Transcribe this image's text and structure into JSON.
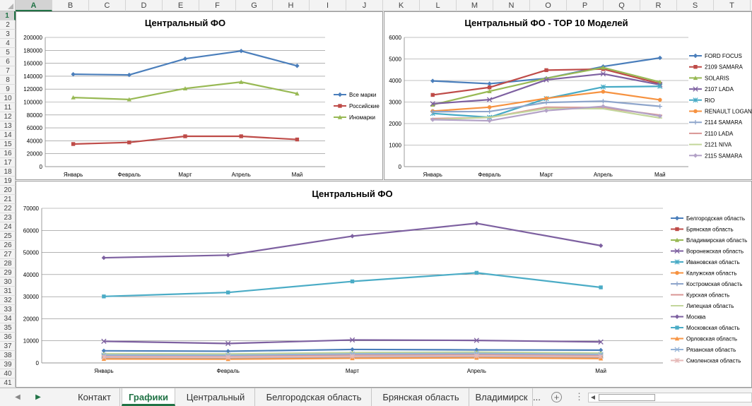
{
  "columns": [
    "A",
    "B",
    "C",
    "D",
    "E",
    "F",
    "G",
    "H",
    "I",
    "J",
    "K",
    "L",
    "M",
    "N",
    "O",
    "P",
    "Q",
    "R",
    "S",
    "T"
  ],
  "selected_column": "A",
  "rows": [
    "1",
    "2",
    "3",
    "4",
    "5",
    "6",
    "7",
    "8",
    "9",
    "10",
    "11",
    "12",
    "13",
    "14",
    "15",
    "16",
    "17",
    "18",
    "19",
    "20",
    "21",
    "22",
    "23",
    "24",
    "25",
    "26",
    "27",
    "28",
    "29",
    "30",
    "31",
    "32",
    "33",
    "34",
    "35",
    "36",
    "37",
    "38",
    "39",
    "40",
    "41"
  ],
  "selected_row": "1",
  "tabs": {
    "items": [
      {
        "label": "Контакт",
        "active": false
      },
      {
        "label": "Графики",
        "active": true
      },
      {
        "label": "Центральный",
        "active": false
      },
      {
        "label": "Белгородская область",
        "active": false
      },
      {
        "label": "Брянская область",
        "active": false
      },
      {
        "label": "Владимирск",
        "active": false
      }
    ],
    "more": "...",
    "add_icon": "plus-circle-icon",
    "options_icon": "vertical-ellipsis-icon"
  },
  "chart_data": [
    {
      "type": "line",
      "title": "Центральный ФО",
      "categories": [
        "Январь",
        "Февраль",
        "Март",
        "Апрель",
        "Май"
      ],
      "ylim": [
        0,
        200000
      ],
      "yticks": [
        "0",
        "20000",
        "40000",
        "60000",
        "80000",
        "100000",
        "120000",
        "140000",
        "160000",
        "180000",
        "200000"
      ],
      "grid": true,
      "legend": "right",
      "series": [
        {
          "name": "Все марки",
          "color": "#4a7ebb",
          "marker": "diamond",
          "values": [
            143000,
            142000,
            167000,
            179000,
            156000
          ]
        },
        {
          "name": "Российские",
          "color": "#be4b48",
          "marker": "square",
          "values": [
            35000,
            37500,
            47000,
            47000,
            42000
          ]
        },
        {
          "name": "Иномарки",
          "color": "#98b954",
          "marker": "triangle",
          "values": [
            107000,
            104000,
            121000,
            131000,
            113000
          ]
        }
      ]
    },
    {
      "type": "line",
      "title": "Центральный ФО - TOP 10 Моделей",
      "categories": [
        "Январь",
        "Февраль",
        "Март",
        "Апрель",
        "Май"
      ],
      "ylim": [
        0,
        6000
      ],
      "yticks": [
        "0",
        "1000",
        "2000",
        "3000",
        "4000",
        "5000",
        "6000"
      ],
      "grid": true,
      "legend": "right",
      "series": [
        {
          "name": "FORD FOCUS",
          "color": "#4a7ebb",
          "marker": "diamond",
          "values": [
            3980,
            3850,
            4100,
            4650,
            5050
          ]
        },
        {
          "name": "2109 SAMARA",
          "color": "#be4b48",
          "marker": "square",
          "values": [
            3330,
            3680,
            4480,
            4530,
            3850
          ]
        },
        {
          "name": "SOLARIS",
          "color": "#98b954",
          "marker": "triangle",
          "values": [
            2870,
            3500,
            4100,
            4600,
            3930
          ]
        },
        {
          "name": "2107 LADA",
          "color": "#7d60a0",
          "marker": "x",
          "values": [
            2920,
            3110,
            4030,
            4310,
            3800
          ]
        },
        {
          "name": "RIO",
          "color": "#46aac5",
          "marker": "asterisk",
          "values": [
            2470,
            2290,
            3160,
            3700,
            3730
          ]
        },
        {
          "name": "RENAULT LOGAN",
          "color": "#f69240",
          "marker": "circle",
          "values": [
            2580,
            2760,
            3170,
            3480,
            3100
          ]
        },
        {
          "name": "2114 SAMARA",
          "color": "#8ea5cb",
          "marker": "plus",
          "values": [
            2550,
            2560,
            2980,
            3040,
            2800
          ]
        },
        {
          "name": "2110 LADA",
          "color": "#d99694",
          "marker": "dash",
          "values": [
            2230,
            2280,
            2760,
            2740,
            2390
          ]
        },
        {
          "name": "2121 NIVA",
          "color": "#c3d69b",
          "marker": "dash",
          "values": [
            2180,
            2290,
            2700,
            2690,
            2260
          ]
        },
        {
          "name": "2115 SAMARA",
          "color": "#b3a2c7",
          "marker": "diamond",
          "values": [
            2180,
            2130,
            2600,
            2800,
            2350
          ]
        }
      ]
    },
    {
      "type": "line",
      "title": "Центральный ФО",
      "categories": [
        "Январь",
        "Февраль",
        "Март",
        "Апрель",
        "Май"
      ],
      "ylim": [
        0,
        70000
      ],
      "yticks": [
        "0",
        "10000",
        "20000",
        "30000",
        "40000",
        "50000",
        "60000",
        "70000"
      ],
      "grid": true,
      "legend": "right",
      "series": [
        {
          "name": "Белгородская область",
          "color": "#4a7ebb",
          "marker": "diamond",
          "values": [
            5500,
            5300,
            6100,
            5900,
            5800
          ]
        },
        {
          "name": "Брянская область",
          "color": "#be4b48",
          "marker": "square",
          "values": [
            3000,
            2900,
            3400,
            3500,
            3200
          ]
        },
        {
          "name": "Владимирская область",
          "color": "#98b954",
          "marker": "triangle",
          "values": [
            4000,
            3900,
            4600,
            4800,
            4400
          ]
        },
        {
          "name": "Воронежская область",
          "color": "#7d60a0",
          "marker": "x",
          "values": [
            9800,
            8800,
            10400,
            10200,
            9500
          ]
        },
        {
          "name": "Ивановская область",
          "color": "#46aac5",
          "marker": "asterisk",
          "values": [
            3100,
            3000,
            3500,
            3700,
            3300
          ]
        },
        {
          "name": "Калужская область",
          "color": "#f69240",
          "marker": "circle",
          "values": [
            2500,
            2400,
            2900,
            3100,
            2700
          ]
        },
        {
          "name": "Костромская область",
          "color": "#8ea5cb",
          "marker": "plus",
          "values": [
            2100,
            2000,
            2400,
            2600,
            2200
          ]
        },
        {
          "name": "Курская область",
          "color": "#d99694",
          "marker": "dash",
          "values": [
            3300,
            3200,
            3700,
            3900,
            3500
          ]
        },
        {
          "name": "Липецкая область",
          "color": "#c3d69b",
          "marker": "dash",
          "values": [
            4200,
            4100,
            4700,
            4900,
            4500
          ]
        },
        {
          "name": "Москва",
          "color": "#7d60a0",
          "marker": "diamond",
          "values": [
            47600,
            48800,
            57400,
            63200,
            53100
          ]
        },
        {
          "name": "Московская область",
          "color": "#4bacc6",
          "marker": "square",
          "values": [
            30100,
            31900,
            36900,
            40800,
            34200
          ]
        },
        {
          "name": "Орловская область",
          "color": "#f79646",
          "marker": "triangle",
          "values": [
            1800,
            1700,
            2100,
            2300,
            2000
          ]
        },
        {
          "name": "Рязанская область",
          "color": "#95b3d7",
          "marker": "x",
          "values": [
            3600,
            3500,
            4100,
            4300,
            3900
          ]
        },
        {
          "name": "Смоленская область",
          "color": "#e6b9b8",
          "marker": "asterisk",
          "values": [
            2700,
            2600,
            3000,
            3200,
            2900
          ]
        }
      ]
    }
  ]
}
